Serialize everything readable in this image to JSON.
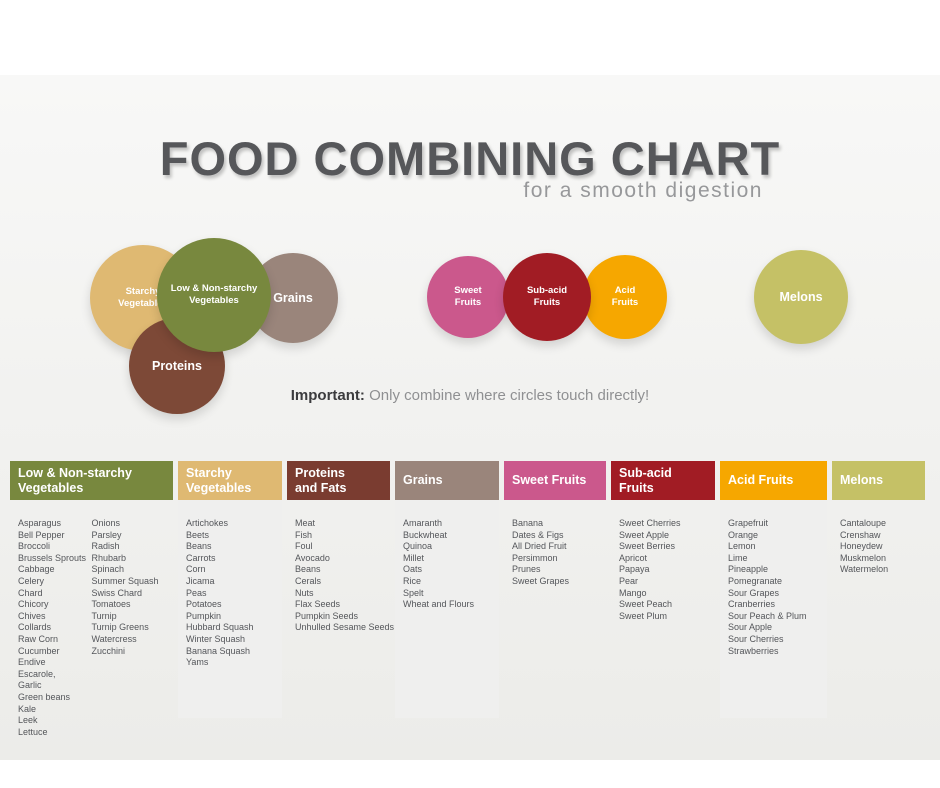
{
  "title": "FOOD COMBINING CHART",
  "subtitle": "for a smooth digestion",
  "note": {
    "label": "Important:",
    "text": "Only combine where circles touch directly!"
  },
  "circles": [
    {
      "id": "starchy-vegetables",
      "label_lines": [
        "Starchy",
        "Vegetables"
      ],
      "color": "#dfb972"
    },
    {
      "id": "low-non-starchy-vegetables",
      "label_lines": [
        "Low & Non-starchy",
        "Vegetables"
      ],
      "color": "#78883e"
    },
    {
      "id": "grains",
      "label_lines": [
        "Grains"
      ],
      "color": "#9a857b"
    },
    {
      "id": "proteins",
      "label_lines": [
        "Proteins"
      ],
      "color": "#7d4937"
    },
    {
      "id": "sweet-fruits",
      "label_lines": [
        "Sweet",
        "Fruits"
      ],
      "color": "#cb588c"
    },
    {
      "id": "sub-acid-fruits",
      "label_lines": [
        "Sub-acid",
        "Fruits"
      ],
      "color": "#a11c24"
    },
    {
      "id": "acid-fruits",
      "label_lines": [
        "Acid",
        "Fruits"
      ],
      "color": "#f6a700"
    },
    {
      "id": "melons",
      "label_lines": [
        "Melons"
      ],
      "color": "#c5c166"
    }
  ],
  "columns": [
    {
      "id": "low-non-starchy-vegetables",
      "title": "Low & Non-starchy\nVegetables",
      "color": "#78883e",
      "lists": [
        [
          "Asparagus",
          "Bell Pepper",
          "Broccoli",
          "Brussels Sprouts",
          "Cabbage",
          "Celery",
          "Chard",
          "Chicory",
          "Chives",
          "Collards",
          "Raw Corn",
          "Cucumber",
          "Endive",
          "Escarole,",
          "Garlic",
          "Green beans",
          "Kale",
          "Leek",
          "Lettuce"
        ],
        [
          "Onions",
          "Parsley",
          "Radish",
          "Rhubarb",
          "Spinach",
          "Summer Squash",
          "Swiss Chard",
          "Tomatoes",
          "Turnip",
          "Turnip Greens",
          "Watercress",
          "Zucchini"
        ]
      ]
    },
    {
      "id": "starchy-vegetables",
      "title": "Starchy\nVegetables",
      "color": "#dfb972",
      "lists": [
        [
          "Artichokes",
          "Beets",
          "Beans",
          "Carrots",
          "Corn",
          "Jicama",
          "Peas",
          "Potatoes",
          "Pumpkin",
          "Hubbard Squash",
          "Winter Squash",
          "Banana Squash",
          "Yams"
        ]
      ]
    },
    {
      "id": "proteins-and-fats",
      "title": "Proteins\nand Fats",
      "color": "#7a3c30",
      "lists": [
        [
          "Meat",
          "Fish",
          "Foul",
          "Avocado",
          "Beans",
          "Cerals",
          "Nuts",
          "Flax Seeds",
          "Pumpkin Seeds",
          "Unhulled Sesame Seeds"
        ]
      ]
    },
    {
      "id": "grains",
      "title": "Grains",
      "color": "#9a857b",
      "lists": [
        [
          "Amaranth",
          "Buckwheat",
          "Quinoa",
          "Millet",
          "Oats",
          "Rice",
          "Spelt",
          "Wheat and Flours"
        ]
      ]
    },
    {
      "id": "sweet-fruits",
      "title": "Sweet Fruits",
      "color": "#cb588c",
      "lists": [
        [
          "Banana",
          "Dates & Figs",
          "All Dried Fruit",
          "Persimmon",
          "Prunes",
          "Sweet Grapes"
        ]
      ]
    },
    {
      "id": "sub-acid-fruits",
      "title": "Sub-acid\nFruits",
      "color": "#a11c24",
      "lists": [
        [
          "Sweet Cherries",
          "Sweet Apple",
          "Sweet Berries",
          "Apricot",
          "Papaya",
          "Pear",
          "Mango",
          "Sweet Peach",
          "Sweet Plum"
        ]
      ]
    },
    {
      "id": "acid-fruits",
      "title": "Acid Fruits",
      "color": "#f6a700",
      "lists": [
        [
          "Grapefruit",
          "Orange",
          "Lemon",
          "Lime",
          "Pineapple",
          "Pomegranate",
          "Sour Grapes",
          "Cranberries",
          "Sour Peach & Plum",
          "Sour Apple",
          "Sour Cherries",
          "Strawberries"
        ]
      ]
    },
    {
      "id": "melons",
      "title": "Melons",
      "color": "#c5c166",
      "lists": [
        [
          "Cantaloupe",
          "Crenshaw",
          "Honeydew",
          "Muskmelon",
          "Watermelon"
        ]
      ]
    }
  ]
}
